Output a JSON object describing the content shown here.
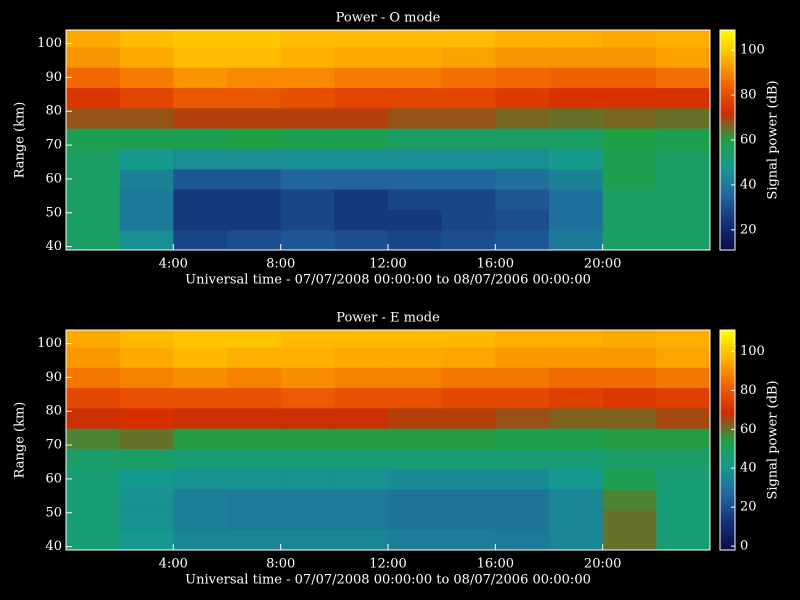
{
  "chart_data": [
    {
      "type": "heatmap",
      "title": "Power - O mode",
      "ylabel": "Range (km)",
      "xlabel": "Universal time - 07/07/2008 00:00:00 to 08/07/2006 00:00:00",
      "zlabel": "Signal power (dB)",
      "xlim": [
        0,
        24
      ],
      "ylim": [
        39,
        104
      ],
      "xticks": [
        {
          "value": 4,
          "label": "4:00"
        },
        {
          "value": 8,
          "label": "8:00"
        },
        {
          "value": 12,
          "label": "12:00"
        },
        {
          "value": 16,
          "label": "16:00"
        },
        {
          "value": 20,
          "label": "20:00"
        }
      ],
      "yticks": [
        40,
        50,
        60,
        70,
        80,
        90,
        100
      ],
      "x_edges": [
        0,
        2,
        4,
        6,
        8,
        10,
        12,
        14,
        16,
        18,
        20,
        22,
        24
      ],
      "y_edges": [
        39,
        45,
        51,
        57,
        63,
        69,
        75,
        81,
        87,
        93,
        99,
        104
      ],
      "z": [
        [
          55,
          45,
          28,
          30,
          32,
          30,
          28,
          30,
          32,
          40,
          55,
          55
        ],
        [
          55,
          40,
          25,
          25,
          28,
          25,
          25,
          28,
          30,
          38,
          55,
          55
        ],
        [
          55,
          40,
          25,
          25,
          28,
          25,
          28,
          28,
          32,
          38,
          55,
          55
        ],
        [
          55,
          42,
          32,
          32,
          35,
          35,
          35,
          35,
          38,
          42,
          58,
          55
        ],
        [
          55,
          48,
          45,
          45,
          45,
          45,
          45,
          45,
          45,
          48,
          58,
          55
        ],
        [
          58,
          58,
          58,
          60,
          58,
          58,
          55,
          55,
          55,
          55,
          60,
          58
        ],
        [
          68,
          68,
          70,
          70,
          70,
          70,
          68,
          68,
          66,
          65,
          66,
          65
        ],
        [
          75,
          78,
          82,
          82,
          80,
          78,
          78,
          78,
          76,
          74,
          74,
          74
        ],
        [
          85,
          88,
          92,
          90,
          90,
          88,
          88,
          86,
          85,
          84,
          84,
          86
        ],
        [
          92,
          95,
          98,
          98,
          96,
          95,
          95,
          94,
          92,
          92,
          92,
          94
        ],
        [
          95,
          98,
          100,
          100,
          98,
          98,
          98,
          98,
          96,
          96,
          95,
          96
        ]
      ],
      "zlim": [
        11,
        109
      ],
      "zticks": [
        20,
        40,
        60,
        80,
        100
      ],
      "colormap": [
        "#0a0a45",
        "#14307a",
        "#2266a0",
        "#159a8e",
        "#1fa045",
        "#d42a00",
        "#f06400",
        "#ffb400",
        "#ffff00"
      ]
    },
    {
      "type": "heatmap",
      "title": "Power - E mode",
      "ylabel": "Range (km)",
      "xlabel": "Universal time - 07/07/2008 00:00:00 to 08/07/2006 00:00:00",
      "zlabel": "Signal power (dB)",
      "xlim": [
        0,
        24
      ],
      "ylim": [
        39,
        104
      ],
      "xticks": [
        {
          "value": 4,
          "label": "4:00"
        },
        {
          "value": 8,
          "label": "8:00"
        },
        {
          "value": 12,
          "label": "12:00"
        },
        {
          "value": 16,
          "label": "16:00"
        },
        {
          "value": 20,
          "label": "20:00"
        }
      ],
      "yticks": [
        40,
        50,
        60,
        70,
        80,
        90,
        100
      ],
      "x_edges": [
        0,
        2,
        4,
        6,
        8,
        10,
        12,
        14,
        16,
        18,
        20,
        22,
        24
      ],
      "y_edges": [
        39,
        45,
        51,
        57,
        63,
        69,
        75,
        81,
        87,
        93,
        99,
        104
      ],
      "z": [
        [
          45,
          40,
          35,
          35,
          35,
          35,
          33,
          33,
          32,
          35,
          60,
          45
        ],
        [
          45,
          38,
          33,
          32,
          32,
          32,
          30,
          30,
          30,
          35,
          60,
          45
        ],
        [
          45,
          38,
          33,
          32,
          32,
          32,
          30,
          30,
          30,
          35,
          58,
          45
        ],
        [
          45,
          40,
          38,
          38,
          38,
          38,
          36,
          36,
          36,
          40,
          52,
          45
        ],
        [
          48,
          48,
          45,
          45,
          45,
          45,
          45,
          45,
          45,
          45,
          48,
          48
        ],
        [
          58,
          60,
          55,
          55,
          55,
          55,
          55,
          55,
          53,
          53,
          55,
          55
        ],
        [
          68,
          70,
          68,
          68,
          68,
          68,
          66,
          66,
          64,
          62,
          62,
          65
        ],
        [
          76,
          78,
          78,
          78,
          80,
          78,
          78,
          76,
          76,
          74,
          72,
          74
        ],
        [
          86,
          88,
          90,
          88,
          90,
          88,
          88,
          86,
          86,
          84,
          84,
          86
        ],
        [
          92,
          95,
          98,
          96,
          96,
          95,
          95,
          94,
          92,
          92,
          92,
          94
        ],
        [
          95,
          98,
          100,
          100,
          98,
          98,
          98,
          98,
          96,
          96,
          95,
          96
        ]
      ],
      "zlim": [
        -2,
        111
      ],
      "zticks": [
        0,
        20,
        40,
        60,
        80,
        100
      ],
      "colormap": [
        "#0a0a45",
        "#14307a",
        "#2266a0",
        "#159a8e",
        "#1fa045",
        "#d42a00",
        "#f06400",
        "#ffb400",
        "#ffff00"
      ]
    }
  ]
}
